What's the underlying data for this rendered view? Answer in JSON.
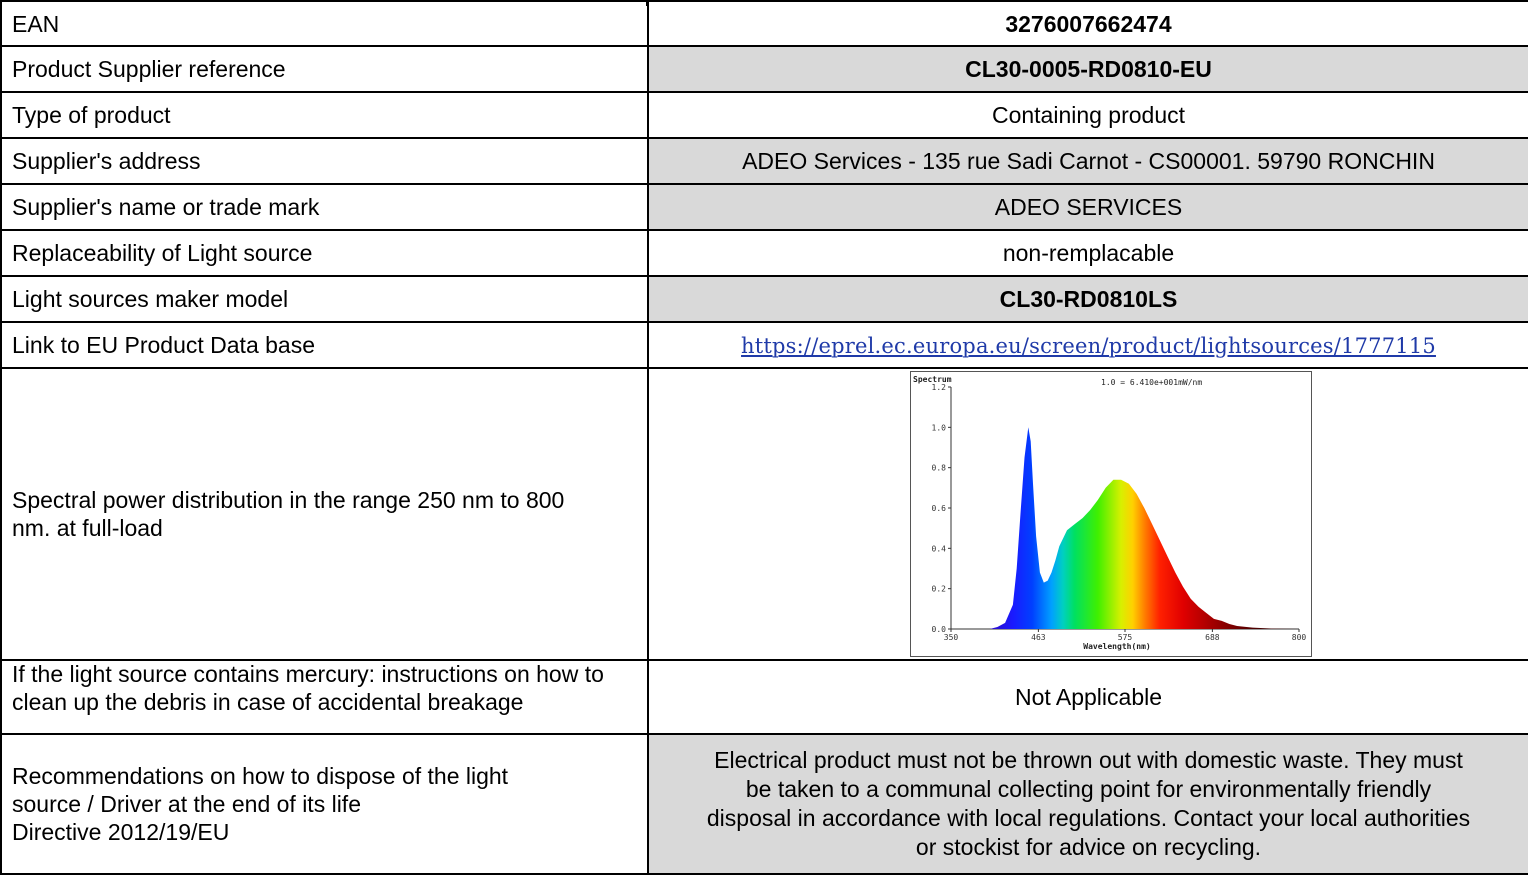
{
  "rows": [
    {
      "label": "EAN",
      "value": "3276007662474"
    },
    {
      "label": "Product Supplier reference",
      "value": "CL30-0005-RD0810-EU"
    },
    {
      "label": "Type of product",
      "value": "Containing product"
    },
    {
      "label": "Supplier's address",
      "value": "ADEO Services - 135 rue Sadi Carnot - CS00001. 59790 RONCHIN"
    },
    {
      "label": "Supplier's name or trade mark",
      "value": "ADEO SERVICES"
    },
    {
      "label": "Replaceability of Light source",
      "value": "non-remplacable"
    },
    {
      "label": "Light sources maker model",
      "value": "CL30-RD0810LS"
    },
    {
      "label": "Link to EU Product Data base",
      "value": "https://eprel.ec.europa.eu/screen/product/lightsources/1777115"
    },
    {
      "label": "Spectral power distribution in the range 250 nm to 800 nm. at full-load"
    },
    {
      "label": "If the light source contains mercury: instructions on how to clean up the debris in case of accidental breakage",
      "value": "Not Applicable"
    },
    {
      "label_lines": [
        "Recommendations on how to dispose of the light",
        "source / Driver at the end of its life",
        "Directive 2012/19/EU"
      ],
      "value_lines": [
        "Electrical product must not be thrown out with domestic waste. They must",
        "be taken to a communal collecting point for environmentally friendly",
        "disposal in accordance with local regulations. Contact your local authorities",
        "or stockist for advice on recycling."
      ]
    }
  ],
  "chart_data": {
    "type": "line",
    "title": "Spectrum",
    "annotation": "1.0 = 6.410e+001mW/nm",
    "xlabel": "Wavelength(nm)",
    "ylabel": "",
    "xlim": [
      350,
      800
    ],
    "ylim": [
      0,
      1.2
    ],
    "x_ticks": [
      "350",
      "463",
      "575",
      "688",
      "800"
    ],
    "y_ticks": [
      "0.0",
      "0.2",
      "0.4",
      "0.6",
      "0.8",
      "1.0",
      "1.2"
    ],
    "fill": "spectral rainbow gradient",
    "series": [
      {
        "x": [
          380,
          400,
          410,
          420,
          430,
          435,
          440,
          445,
          450,
          453,
          456,
          460,
          465,
          470,
          475,
          480,
          485,
          490,
          500,
          510,
          520,
          530,
          540,
          550,
          560,
          570,
          580,
          590,
          600,
          610,
          620,
          630,
          640,
          650,
          660,
          670,
          680,
          690,
          700,
          710,
          720,
          740,
          760,
          780,
          800
        ],
        "y": [
          0.0,
          0.0,
          0.01,
          0.03,
          0.12,
          0.3,
          0.58,
          0.85,
          1.0,
          0.93,
          0.72,
          0.46,
          0.28,
          0.23,
          0.24,
          0.28,
          0.34,
          0.41,
          0.49,
          0.52,
          0.55,
          0.59,
          0.64,
          0.7,
          0.74,
          0.74,
          0.72,
          0.67,
          0.6,
          0.52,
          0.44,
          0.36,
          0.28,
          0.21,
          0.15,
          0.11,
          0.08,
          0.05,
          0.04,
          0.025,
          0.015,
          0.007,
          0.003,
          0.001,
          0.0
        ]
      }
    ]
  }
}
